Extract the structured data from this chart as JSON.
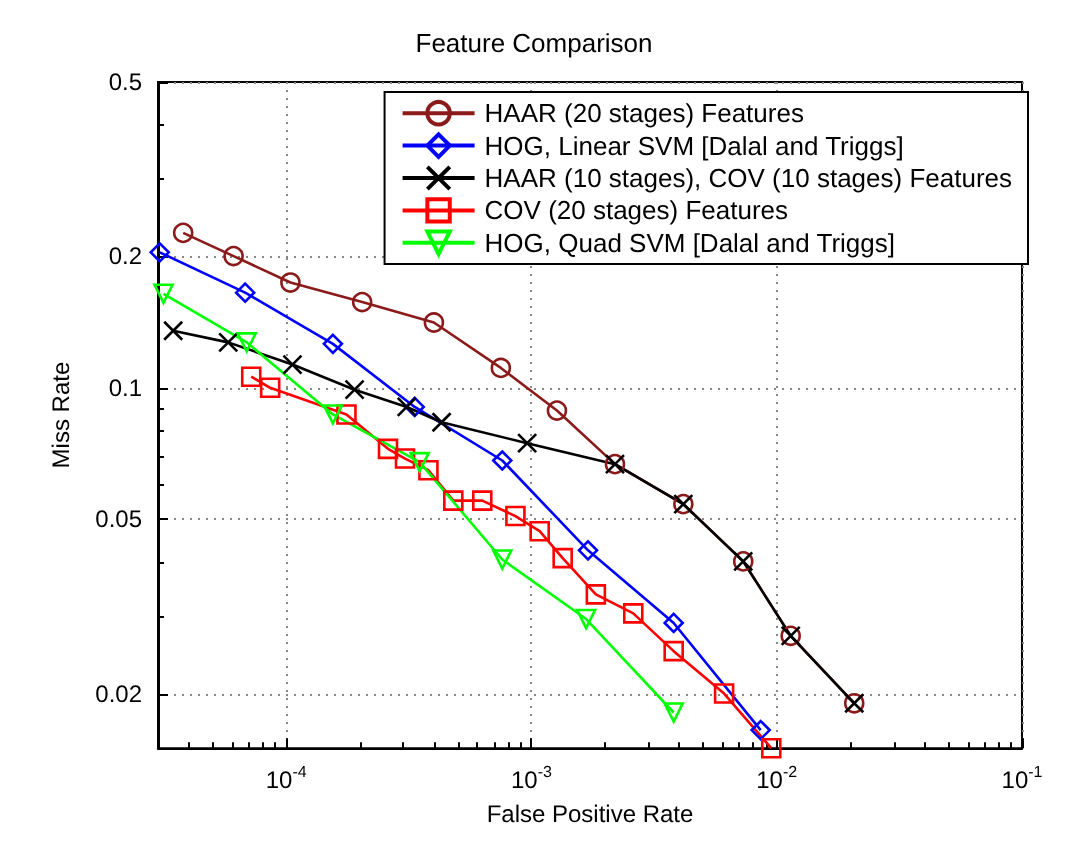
{
  "chart_data": {
    "type": "line",
    "title": "Feature Comparison",
    "xlabel": "False Positive Rate",
    "ylabel": "Miss Rate",
    "log": "xy",
    "grid": true,
    "legend": "top right",
    "xlim": [
      3e-05,
      0.1
    ],
    "ylim": [
      0.015,
      0.5
    ],
    "xticks": [
      {
        "value": 0.0001,
        "label": "10$^{-4}$"
      },
      {
        "value": 0.001,
        "label": "10$^{-3}$"
      },
      {
        "value": 0.01,
        "label": "10$^{-2}$"
      },
      {
        "value": 0.1,
        "label": "10$^{-1}$"
      }
    ],
    "yticks": [
      0.02,
      0.05,
      0.1,
      0.2,
      0.5
    ],
    "series": [
      {
        "name": "HAAR (20 stages) Features",
        "color": "#8b1a1a",
        "marker": "circle",
        "x": [
          3.8e-05,
          6.1e-05,
          0.000104,
          0.000204,
          0.0004,
          0.00075,
          0.00127,
          0.00219,
          0.00416,
          0.0073,
          0.0114,
          0.0207
        ],
        "values": [
          0.226,
          0.2,
          0.174,
          0.157,
          0.141,
          0.111,
          0.0887,
          0.0669,
          0.0542,
          0.0401,
          0.0271,
          0.019
        ]
      },
      {
        "name": "HOG, Linear SVM [Dalal and Triggs]",
        "color": "#0000ff",
        "marker": "diamond",
        "x": [
          3.05e-05,
          6.8e-05,
          0.000155,
          0.000334,
          0.00076,
          0.0017,
          0.0038,
          0.0086
        ],
        "values": [
          0.204,
          0.165,
          0.126,
          0.0904,
          0.0682,
          0.0425,
          0.029,
          0.0165
        ]
      },
      {
        "name": "HAAR (10 stages), COV (10 stages) Features",
        "color": "#000000",
        "marker": "cross",
        "x": [
          3.46e-05,
          5.8e-05,
          0.000106,
          0.00019,
          0.00031,
          0.00043,
          0.00096,
          0.00219,
          0.00416,
          0.0073,
          0.0114,
          0.0207
        ],
        "values": [
          0.135,
          0.127,
          0.113,
          0.099,
          0.0904,
          0.0834,
          0.0747,
          0.0669,
          0.0542,
          0.0401,
          0.0271,
          0.019
        ]
      },
      {
        "name": "COV (20 stages) Features",
        "color": "#ff0000",
        "marker": "square",
        "x": [
          7.2e-05,
          8.6e-05,
          0.000176,
          0.00026,
          0.000305,
          0.00038,
          0.00048,
          0.00063,
          0.00086,
          0.00108,
          0.00134,
          0.00183,
          0.0026,
          0.0038,
          0.0061,
          0.0095
        ],
        "values": [
          0.106,
          0.1,
          0.0869,
          0.0725,
          0.0689,
          0.0648,
          0.0552,
          0.0552,
          0.0509,
          0.047,
          0.0408,
          0.0337,
          0.0305,
          0.025,
          0.02,
          0.015
        ]
      },
      {
        "name": "HOG, Quad SVM [Dalal and Triggs]",
        "color": "#00ff00",
        "marker": "triangle",
        "x": [
          3.16e-05,
          6.9e-05,
          0.000155,
          0.00035,
          0.00076,
          0.00167,
          0.0038
        ],
        "values": [
          0.164,
          0.127,
          0.0869,
          0.0676,
          0.0405,
          0.0296,
          0.0181
        ]
      }
    ]
  }
}
